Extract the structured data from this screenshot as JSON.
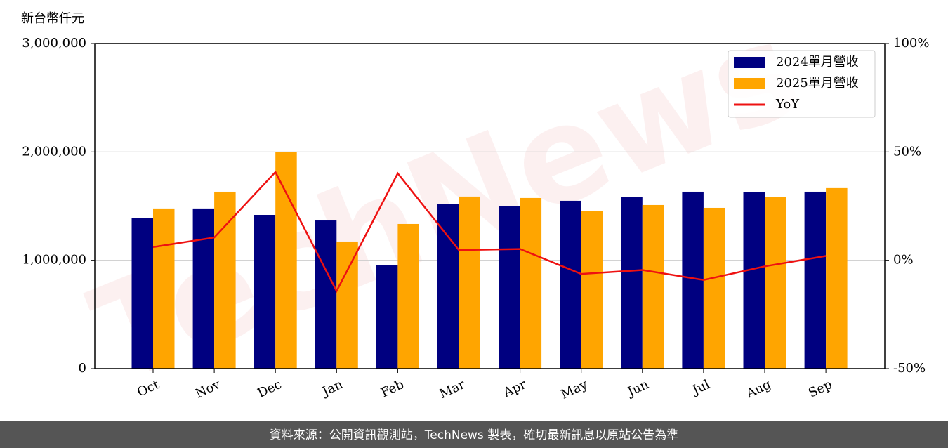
{
  "chart_data": {
    "type": "bar",
    "watermark": "TechNews",
    "y_unit_label": "新台幣仟元",
    "categories": [
      "Oct",
      "Nov",
      "Dec",
      "Jan",
      "Feb",
      "Mar",
      "Apr",
      "May",
      "Jun",
      "Jul",
      "Aug",
      "Sep"
    ],
    "series": [
      {
        "name": "2024單月營收",
        "color": "#000080",
        "values": [
          1393000,
          1478000,
          1419000,
          1367000,
          953000,
          1517000,
          1497000,
          1549000,
          1581000,
          1633000,
          1627000,
          1633000
        ]
      },
      {
        "name": "2025單月營收",
        "color": "#ffa500",
        "values": [
          1478000,
          1633000,
          1996000,
          1173000,
          1335000,
          1588000,
          1575000,
          1452000,
          1510000,
          1484000,
          1581000,
          1666000
        ]
      },
      {
        "name": "YoY",
        "color": "#ee1111",
        "type": "line",
        "axis": "y2",
        "values": [
          6.1,
          10.5,
          40.7,
          -14.2,
          40.1,
          4.7,
          5.2,
          -6.3,
          -4.5,
          -9.1,
          -2.8,
          2.0
        ]
      }
    ],
    "ylim": [
      0,
      3000000
    ],
    "yticks": [
      {
        "value": 0,
        "label": "0"
      },
      {
        "value": 1000000,
        "label": "1,000,000"
      },
      {
        "value": 2000000,
        "label": "2,000,000"
      },
      {
        "value": 3000000,
        "label": "3,000,000"
      }
    ],
    "y2lim": [
      -50,
      100
    ],
    "y2ticks": [
      {
        "value": -50,
        "label": "-50%"
      },
      {
        "value": 0,
        "label": "0%"
      },
      {
        "value": 50,
        "label": "50%"
      },
      {
        "value": 100,
        "label": "100%"
      }
    ],
    "grid": true,
    "legend": "upper right",
    "footer": "資料來源：公開資訊觀測站，TechNews 製表，確切最新訊息以原站公告為準"
  }
}
